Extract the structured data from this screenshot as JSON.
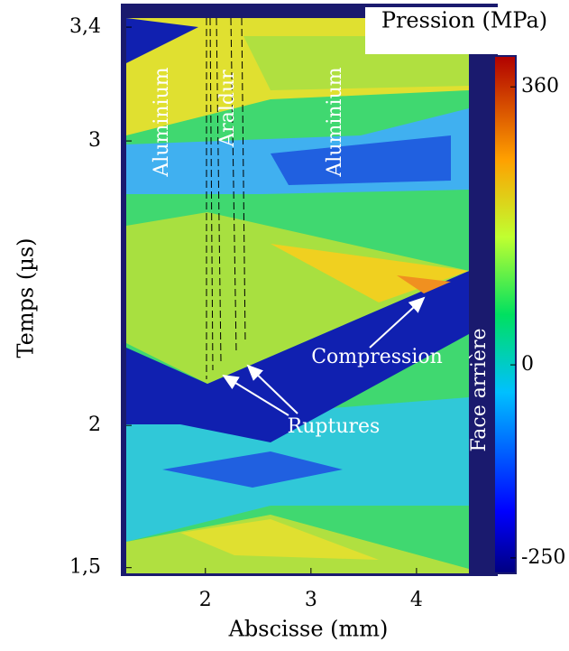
{
  "chart_data": {
    "type": "contour",
    "xlabel": "Abscisse (mm)",
    "ylabel": "Temps (µs)",
    "xlim": [
      1.25,
      4.71
    ],
    "xticks": [
      2,
      3,
      4
    ],
    "ylim": [
      1.48,
      3.47
    ],
    "yticks": [
      {
        "value": 1.5,
        "label": "1,5"
      },
      2,
      3,
      {
        "value": 3.4,
        "label": "3,4"
      }
    ],
    "colorbar": {
      "label": "Pression (MPa)",
      "clim": [
        -270,
        400
      ],
      "ticks": [
        -250,
        0,
        360
      ],
      "colormap": "jet"
    },
    "annotations": [
      "Aluminium",
      "Araldur",
      "Aluminium",
      "Compression",
      "Ruptures",
      "Face arrière"
    ]
  }
}
